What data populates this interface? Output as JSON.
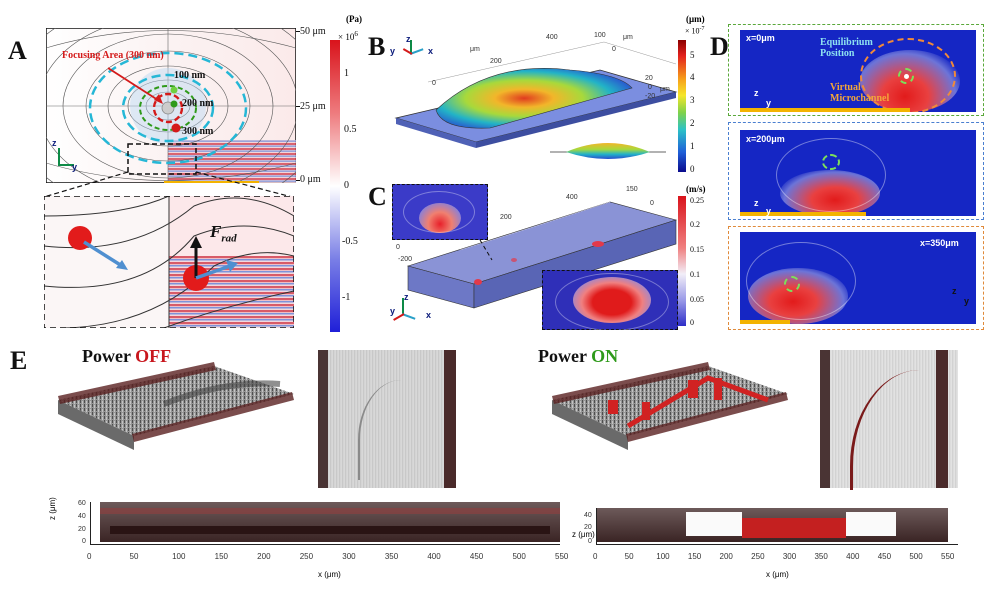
{
  "panels": {
    "A": "A",
    "B": "B",
    "C": "C",
    "D": "D",
    "E": "E"
  },
  "panel_a": {
    "focusing_label": "Focusing Area (300 nm)",
    "ring_labels": [
      "100 nm",
      "200 nm",
      "300 nm"
    ],
    "height_ticks": [
      "50 μm",
      "25 μm",
      "0 μm"
    ],
    "force_label": "F",
    "force_sub": "rad"
  },
  "colorbar_a": {
    "unit": "(Pa)",
    "scale": "× 10",
    "scale_exp": "6",
    "ticks": [
      "1",
      "0.5",
      "0",
      "-0.5",
      "-1"
    ]
  },
  "panel_b": {
    "unit_label": "μm",
    "ticks_x": [
      "0",
      "200",
      "400"
    ],
    "ticks_y": [
      "100",
      "0"
    ],
    "ticks_z": [
      "20",
      "0",
      "-20"
    ]
  },
  "colorbar_b": {
    "unit": "(μm)",
    "scale": "× 10",
    "scale_exp": "-7",
    "ticks": [
      "5",
      "4",
      "3",
      "2",
      "1",
      "0"
    ]
  },
  "panel_c": {
    "ticks": [
      "0",
      "-200",
      "200",
      "400",
      "150",
      "0"
    ]
  },
  "colorbar_c": {
    "unit": "(m/s)",
    "ticks": [
      "0.25",
      "0.2",
      "0.15",
      "0.1",
      "0.05",
      "0"
    ]
  },
  "panel_d": {
    "x_labels": [
      "x=0μm",
      "x=200μm",
      "x=350μm"
    ],
    "equilibrium": "Equilibrium Position",
    "virtual": "Virtual Microchannel"
  },
  "panel_e": {
    "power_text": "Power",
    "off": "OFF",
    "on": "ON",
    "z_axis_label": "z (μm)",
    "x_axis_label": "x (μm)",
    "z_ticks": [
      "60",
      "40",
      "20",
      "0"
    ],
    "x_ticks": [
      "0",
      "50",
      "100",
      "150",
      "200",
      "250",
      "300",
      "350",
      "400",
      "450",
      "500",
      "550"
    ]
  },
  "axes": {
    "z": "z",
    "y": "y",
    "x": "x"
  },
  "colors": {
    "red": "#c8161d",
    "green": "#2e9a1a",
    "cyan": "#25b7d6",
    "amber": "#f3b300",
    "navy": "#0a1a7a"
  }
}
